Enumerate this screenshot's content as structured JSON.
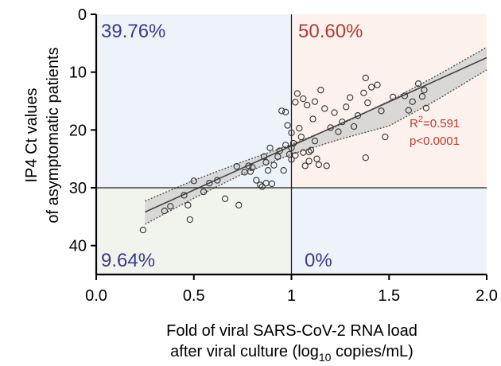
{
  "chart_data": {
    "type": "scatter",
    "xlabel_line1": "Fold of viral SARS-CoV-2 RNA load",
    "xlabel_line2_pre": "after viral culture (log",
    "xlabel_line2_sub": "10",
    "xlabel_line2_post": " copies/mL)",
    "ylabel_line1": "IP4 Ct values",
    "ylabel_line2": "of asymptomatic patients",
    "xlim": [
      0,
      2.0
    ],
    "ylim": [
      45,
      0
    ],
    "y_inverted": true,
    "x_ticks": [
      0,
      0.5,
      1,
      1.5,
      2
    ],
    "x_tick_labels": [
      "0.0",
      "0.5",
      "1",
      "1.5",
      "2.0"
    ],
    "y_ticks": [
      0,
      10,
      20,
      30,
      40
    ],
    "y_tick_labels": [
      "0",
      "10",
      "20",
      "30",
      "40"
    ],
    "threshold_x": 1,
    "threshold_y": 30,
    "quadrants": [
      {
        "label": "39.76%",
        "color": "#3a3a8c",
        "fill": "#eef3fa"
      },
      {
        "label": "50.60%",
        "color": "#b23a3a",
        "fill": "#fcf1ec"
      },
      {
        "label": "9.64%",
        "color": "#3a3a8c",
        "fill": "#f1f4ec"
      },
      {
        "label": "0%",
        "color": "#3a3a8c",
        "fill": "#eef3fa"
      }
    ],
    "regression": {
      "r2_prefix": "R",
      "r2_sup": "2",
      "r2_value": "=0.591",
      "p_label": "p<0.0001",
      "label_color": "#c0392b",
      "line": {
        "x": [
          0.25,
          2.0
        ],
        "y": [
          34.2,
          7.5
        ]
      },
      "ci_upper": [
        [
          0.25,
          32.3
        ],
        [
          0.5,
          28.7
        ],
        [
          0.75,
          25.5
        ],
        [
          1.0,
          22.5
        ],
        [
          1.25,
          19.1
        ],
        [
          1.5,
          15.0
        ],
        [
          1.75,
          10.5
        ],
        [
          2.0,
          5.7
        ]
      ],
      "ci_lower": [
        [
          0.25,
          36.3
        ],
        [
          0.5,
          31.8
        ],
        [
          0.75,
          27.6
        ],
        [
          1.0,
          24.2
        ],
        [
          1.25,
          21.6
        ],
        [
          1.5,
          19.3
        ],
        [
          1.75,
          14.7
        ],
        [
          2.0,
          9.6
        ]
      ]
    },
    "points": [
      {
        "x": 0.24,
        "y": 37.3
      },
      {
        "x": 0.35,
        "y": 34.0
      },
      {
        "x": 0.38,
        "y": 33.2
      },
      {
        "x": 0.45,
        "y": 31.3
      },
      {
        "x": 0.47,
        "y": 33.0
      },
      {
        "x": 0.48,
        "y": 35.5
      },
      {
        "x": 0.5,
        "y": 28.8
      },
      {
        "x": 0.55,
        "y": 30.7
      },
      {
        "x": 0.58,
        "y": 29.2
      },
      {
        "x": 0.62,
        "y": 28.7
      },
      {
        "x": 0.66,
        "y": 31.9
      },
      {
        "x": 0.72,
        "y": 26.3
      },
      {
        "x": 0.73,
        "y": 33.0
      },
      {
        "x": 0.76,
        "y": 27.3
      },
      {
        "x": 0.78,
        "y": 26.2
      },
      {
        "x": 0.79,
        "y": 27.2
      },
      {
        "x": 0.8,
        "y": 26.5
      },
      {
        "x": 0.82,
        "y": 28.7
      },
      {
        "x": 0.85,
        "y": 29.8
      },
      {
        "x": 0.86,
        "y": 24.6
      },
      {
        "x": 0.87,
        "y": 25.6
      },
      {
        "x": 0.87,
        "y": 29.2
      },
      {
        "x": 0.88,
        "y": 27.0
      },
      {
        "x": 0.89,
        "y": 23.1
      },
      {
        "x": 0.9,
        "y": 29.3
      },
      {
        "x": 0.91,
        "y": 26.1
      },
      {
        "x": 0.93,
        "y": 24.6
      },
      {
        "x": 0.94,
        "y": 23.6
      },
      {
        "x": 0.95,
        "y": 16.7
      },
      {
        "x": 0.96,
        "y": 27.0
      },
      {
        "x": 0.97,
        "y": 16.9
      },
      {
        "x": 0.97,
        "y": 22.6
      },
      {
        "x": 0.98,
        "y": 19.2
      },
      {
        "x": 0.99,
        "y": 24.2
      },
      {
        "x": 1.0,
        "y": 20.5
      },
      {
        "x": 1.0,
        "y": 23.1
      },
      {
        "x": 1.0,
        "y": 25.1
      },
      {
        "x": 1.01,
        "y": 22.3
      },
      {
        "x": 1.02,
        "y": 15.2
      },
      {
        "x": 1.02,
        "y": 24.4
      },
      {
        "x": 1.03,
        "y": 13.7
      },
      {
        "x": 1.04,
        "y": 19.7
      },
      {
        "x": 1.05,
        "y": 21.2
      },
      {
        "x": 1.06,
        "y": 14.6
      },
      {
        "x": 1.06,
        "y": 23.9
      },
      {
        "x": 1.07,
        "y": 26.2
      },
      {
        "x": 1.08,
        "y": 15.7
      },
      {
        "x": 1.09,
        "y": 25.4
      },
      {
        "x": 1.1,
        "y": 23.5
      },
      {
        "x": 1.11,
        "y": 18.1
      },
      {
        "x": 1.12,
        "y": 15.1
      },
      {
        "x": 1.12,
        "y": 21.9
      },
      {
        "x": 1.13,
        "y": 25.0
      },
      {
        "x": 1.14,
        "y": 26.0
      },
      {
        "x": 1.15,
        "y": 13.1
      },
      {
        "x": 1.17,
        "y": 16.3
      },
      {
        "x": 1.18,
        "y": 26.2
      },
      {
        "x": 1.2,
        "y": 19.6
      },
      {
        "x": 1.22,
        "y": 17.0
      },
      {
        "x": 1.24,
        "y": 20.3
      },
      {
        "x": 1.26,
        "y": 18.6
      },
      {
        "x": 1.28,
        "y": 16.0
      },
      {
        "x": 1.3,
        "y": 14.4
      },
      {
        "x": 1.32,
        "y": 19.4
      },
      {
        "x": 1.34,
        "y": 17.5
      },
      {
        "x": 1.37,
        "y": 13.6
      },
      {
        "x": 1.38,
        "y": 11.0
      },
      {
        "x": 1.39,
        "y": 15.3
      },
      {
        "x": 1.41,
        "y": 12.6
      },
      {
        "x": 1.44,
        "y": 12.2
      },
      {
        "x": 1.46,
        "y": 16.7
      },
      {
        "x": 1.48,
        "y": 21.2
      },
      {
        "x": 1.38,
        "y": 24.8
      },
      {
        "x": 1.52,
        "y": 14.3
      },
      {
        "x": 1.58,
        "y": 14.1
      },
      {
        "x": 1.6,
        "y": 16.6
      },
      {
        "x": 1.62,
        "y": 15.1
      },
      {
        "x": 1.65,
        "y": 12.0
      },
      {
        "x": 1.67,
        "y": 14.2
      },
      {
        "x": 1.68,
        "y": 13.1
      },
      {
        "x": 1.69,
        "y": 16.2
      },
      {
        "x": 1.09,
        "y": 23.8
      },
      {
        "x": 0.84,
        "y": 29.5
      }
    ]
  }
}
